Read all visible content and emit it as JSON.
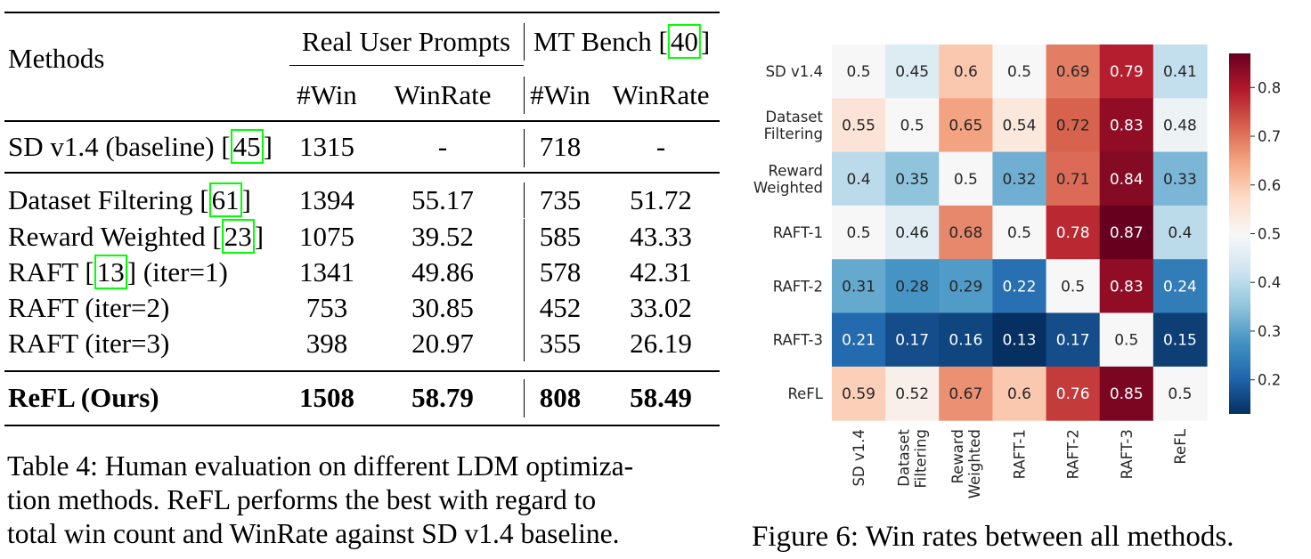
{
  "table": {
    "header": {
      "methods": "Methods",
      "group1": "Real User Prompts",
      "group2_text": "MT Bench [",
      "group2_cite": "40",
      "group2_close": "]",
      "win": "#Win",
      "winrate": "WinRate"
    },
    "baseline": {
      "method_text": "SD v1.4 (baseline) [",
      "cite": "45",
      "close": "]",
      "ru_win": "1315",
      "ru_rate": "-",
      "mt_win": "718",
      "mt_rate": "-"
    },
    "rows": [
      {
        "method_text": "Dataset Filtering [",
        "cite": "61",
        "close": "]",
        "ru_win": "1394",
        "ru_rate": "55.17",
        "mt_win": "735",
        "mt_rate": "51.72"
      },
      {
        "method_text": "Reward Weighted [",
        "cite": "23",
        "close": "]",
        "ru_win": "1075",
        "ru_rate": "39.52",
        "mt_win": "585",
        "mt_rate": "43.33"
      },
      {
        "method_text": "RAFT [",
        "cite": "13",
        "close": "] (iter=1)",
        "ru_win": "1341",
        "ru_rate": "49.86",
        "mt_win": "578",
        "mt_rate": "42.31"
      },
      {
        "method_text": "RAFT (iter=2)",
        "cite": "",
        "close": "",
        "ru_win": "753",
        "ru_rate": "30.85",
        "mt_win": "452",
        "mt_rate": "33.02"
      },
      {
        "method_text": "RAFT (iter=3)",
        "cite": "",
        "close": "",
        "ru_win": "398",
        "ru_rate": "20.97",
        "mt_win": "355",
        "mt_rate": "26.19"
      }
    ],
    "ours": {
      "method_text": "ReFL (Ours)",
      "ru_win": "1508",
      "ru_rate": "58.79",
      "mt_win": "808",
      "mt_rate": "58.49"
    },
    "cite_color": "#00ff00",
    "caption_lines": [
      "Table 4: Human evaluation on different LDM optimiza-",
      "tion methods. ReFL performs the best with regard to",
      "total win count and WinRate against SD v1.4 baseline."
    ]
  },
  "figure": {
    "caption": "Figure 6: Win rates between all methods.",
    "chart_data": {
      "type": "heatmap",
      "row_labels": [
        [
          "SD v1.4"
        ],
        [
          "Dataset",
          "Filtering"
        ],
        [
          "Reward",
          "Weighted"
        ],
        [
          "RAFT-1"
        ],
        [
          "RAFT-2"
        ],
        [
          "RAFT-3"
        ],
        [
          "ReFL"
        ]
      ],
      "col_labels": [
        [
          "SD v1.4"
        ],
        [
          "Dataset",
          "Filtering"
        ],
        [
          "Reward",
          "Weighted"
        ],
        [
          "RAFT-1"
        ],
        [
          "RAFT-2"
        ],
        [
          "RAFT-3"
        ],
        [
          "ReFL"
        ]
      ],
      "values": [
        [
          "0.5",
          "0.45",
          "0.6",
          "0.5",
          "0.69",
          "0.79",
          "0.41"
        ],
        [
          "0.55",
          "0.5",
          "0.65",
          "0.54",
          "0.72",
          "0.83",
          "0.48"
        ],
        [
          "0.4",
          "0.35",
          "0.5",
          "0.32",
          "0.71",
          "0.84",
          "0.33"
        ],
        [
          "0.5",
          "0.46",
          "0.68",
          "0.5",
          "0.78",
          "0.87",
          "0.4"
        ],
        [
          "0.31",
          "0.28",
          "0.29",
          "0.22",
          "0.5",
          "0.83",
          "0.24"
        ],
        [
          "0.21",
          "0.17",
          "0.16",
          "0.13",
          "0.17",
          "0.5",
          "0.15"
        ],
        [
          "0.59",
          "0.52",
          "0.67",
          "0.6",
          "0.76",
          "0.85",
          "0.5"
        ]
      ],
      "colormap": "RdBu_r",
      "vmin": 0.13,
      "vmax": 0.87,
      "colorbar_ticks": [
        "0.8",
        "0.7",
        "0.6",
        "0.5",
        "0.4",
        "0.3",
        "0.2"
      ]
    }
  }
}
